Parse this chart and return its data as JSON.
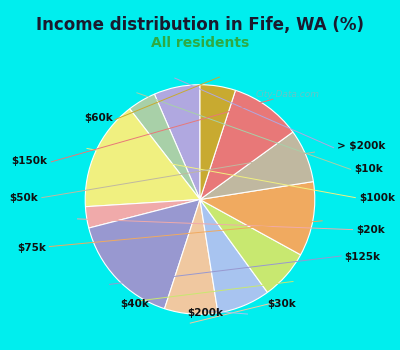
{
  "title": "Income distribution in Fife, WA (%)",
  "subtitle": "All residents",
  "title_color": "#1a1a2e",
  "subtitle_color": "#2eaa44",
  "bg_outer": "#00eeee",
  "bg_inner_color": "#e0f5ec",
  "watermark": "City-Data.com",
  "labels": [
    "> $200k",
    "$10k",
    "$100k",
    "$20k",
    "$125k",
    "$30k",
    "$200k",
    "$40k",
    "$75k",
    "$50k",
    "$150k",
    "$60k"
  ],
  "values": [
    6.5,
    4.0,
    15.5,
    3.0,
    16.0,
    7.5,
    7.5,
    7.0,
    10.5,
    7.5,
    10.0,
    5.0
  ],
  "colors": [
    "#b0a8e0",
    "#a8d0a8",
    "#f0f080",
    "#f0aaaa",
    "#9898d0",
    "#f0c8a0",
    "#a8c4f0",
    "#c8e870",
    "#f0aa60",
    "#c0b8a0",
    "#e87878",
    "#c8aa30"
  ],
  "startangle": 90,
  "label_fontsize": 7.5,
  "title_fontsize": 12,
  "subtitle_fontsize": 10
}
